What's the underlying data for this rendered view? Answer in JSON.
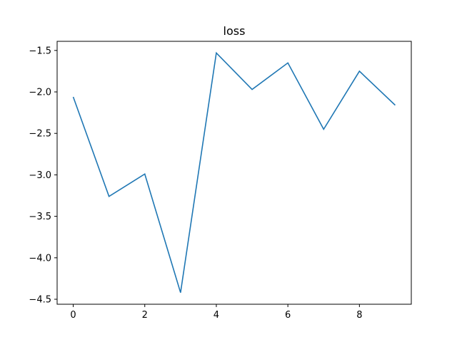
{
  "chart_data": {
    "type": "line",
    "title": "loss",
    "xlabel": "",
    "ylabel": "",
    "x": [
      0,
      1,
      2,
      3,
      4,
      5,
      6,
      7,
      8,
      9
    ],
    "series": [
      {
        "values": [
          -2.06,
          -3.26,
          -2.99,
          -4.42,
          -1.53,
          -1.97,
          -1.65,
          -2.45,
          -1.75,
          -2.16
        ],
        "color": "#1f77b4"
      }
    ],
    "xlim": [
      -0.45,
      9.45
    ],
    "ylim": [
      -4.56,
      -1.39
    ],
    "xticks": [
      0,
      2,
      4,
      6,
      8
    ],
    "xtick_labels": [
      "0",
      "2",
      "4",
      "6",
      "8"
    ],
    "yticks": [
      -4.5,
      -4.0,
      -3.5,
      -3.0,
      -2.5,
      -2.0,
      -1.5
    ],
    "ytick_labels": [
      "−4.5",
      "−4.0",
      "−3.5",
      "−3.0",
      "−2.5",
      "−2.0",
      "−1.5"
    ],
    "grid": false,
    "legend": false
  }
}
